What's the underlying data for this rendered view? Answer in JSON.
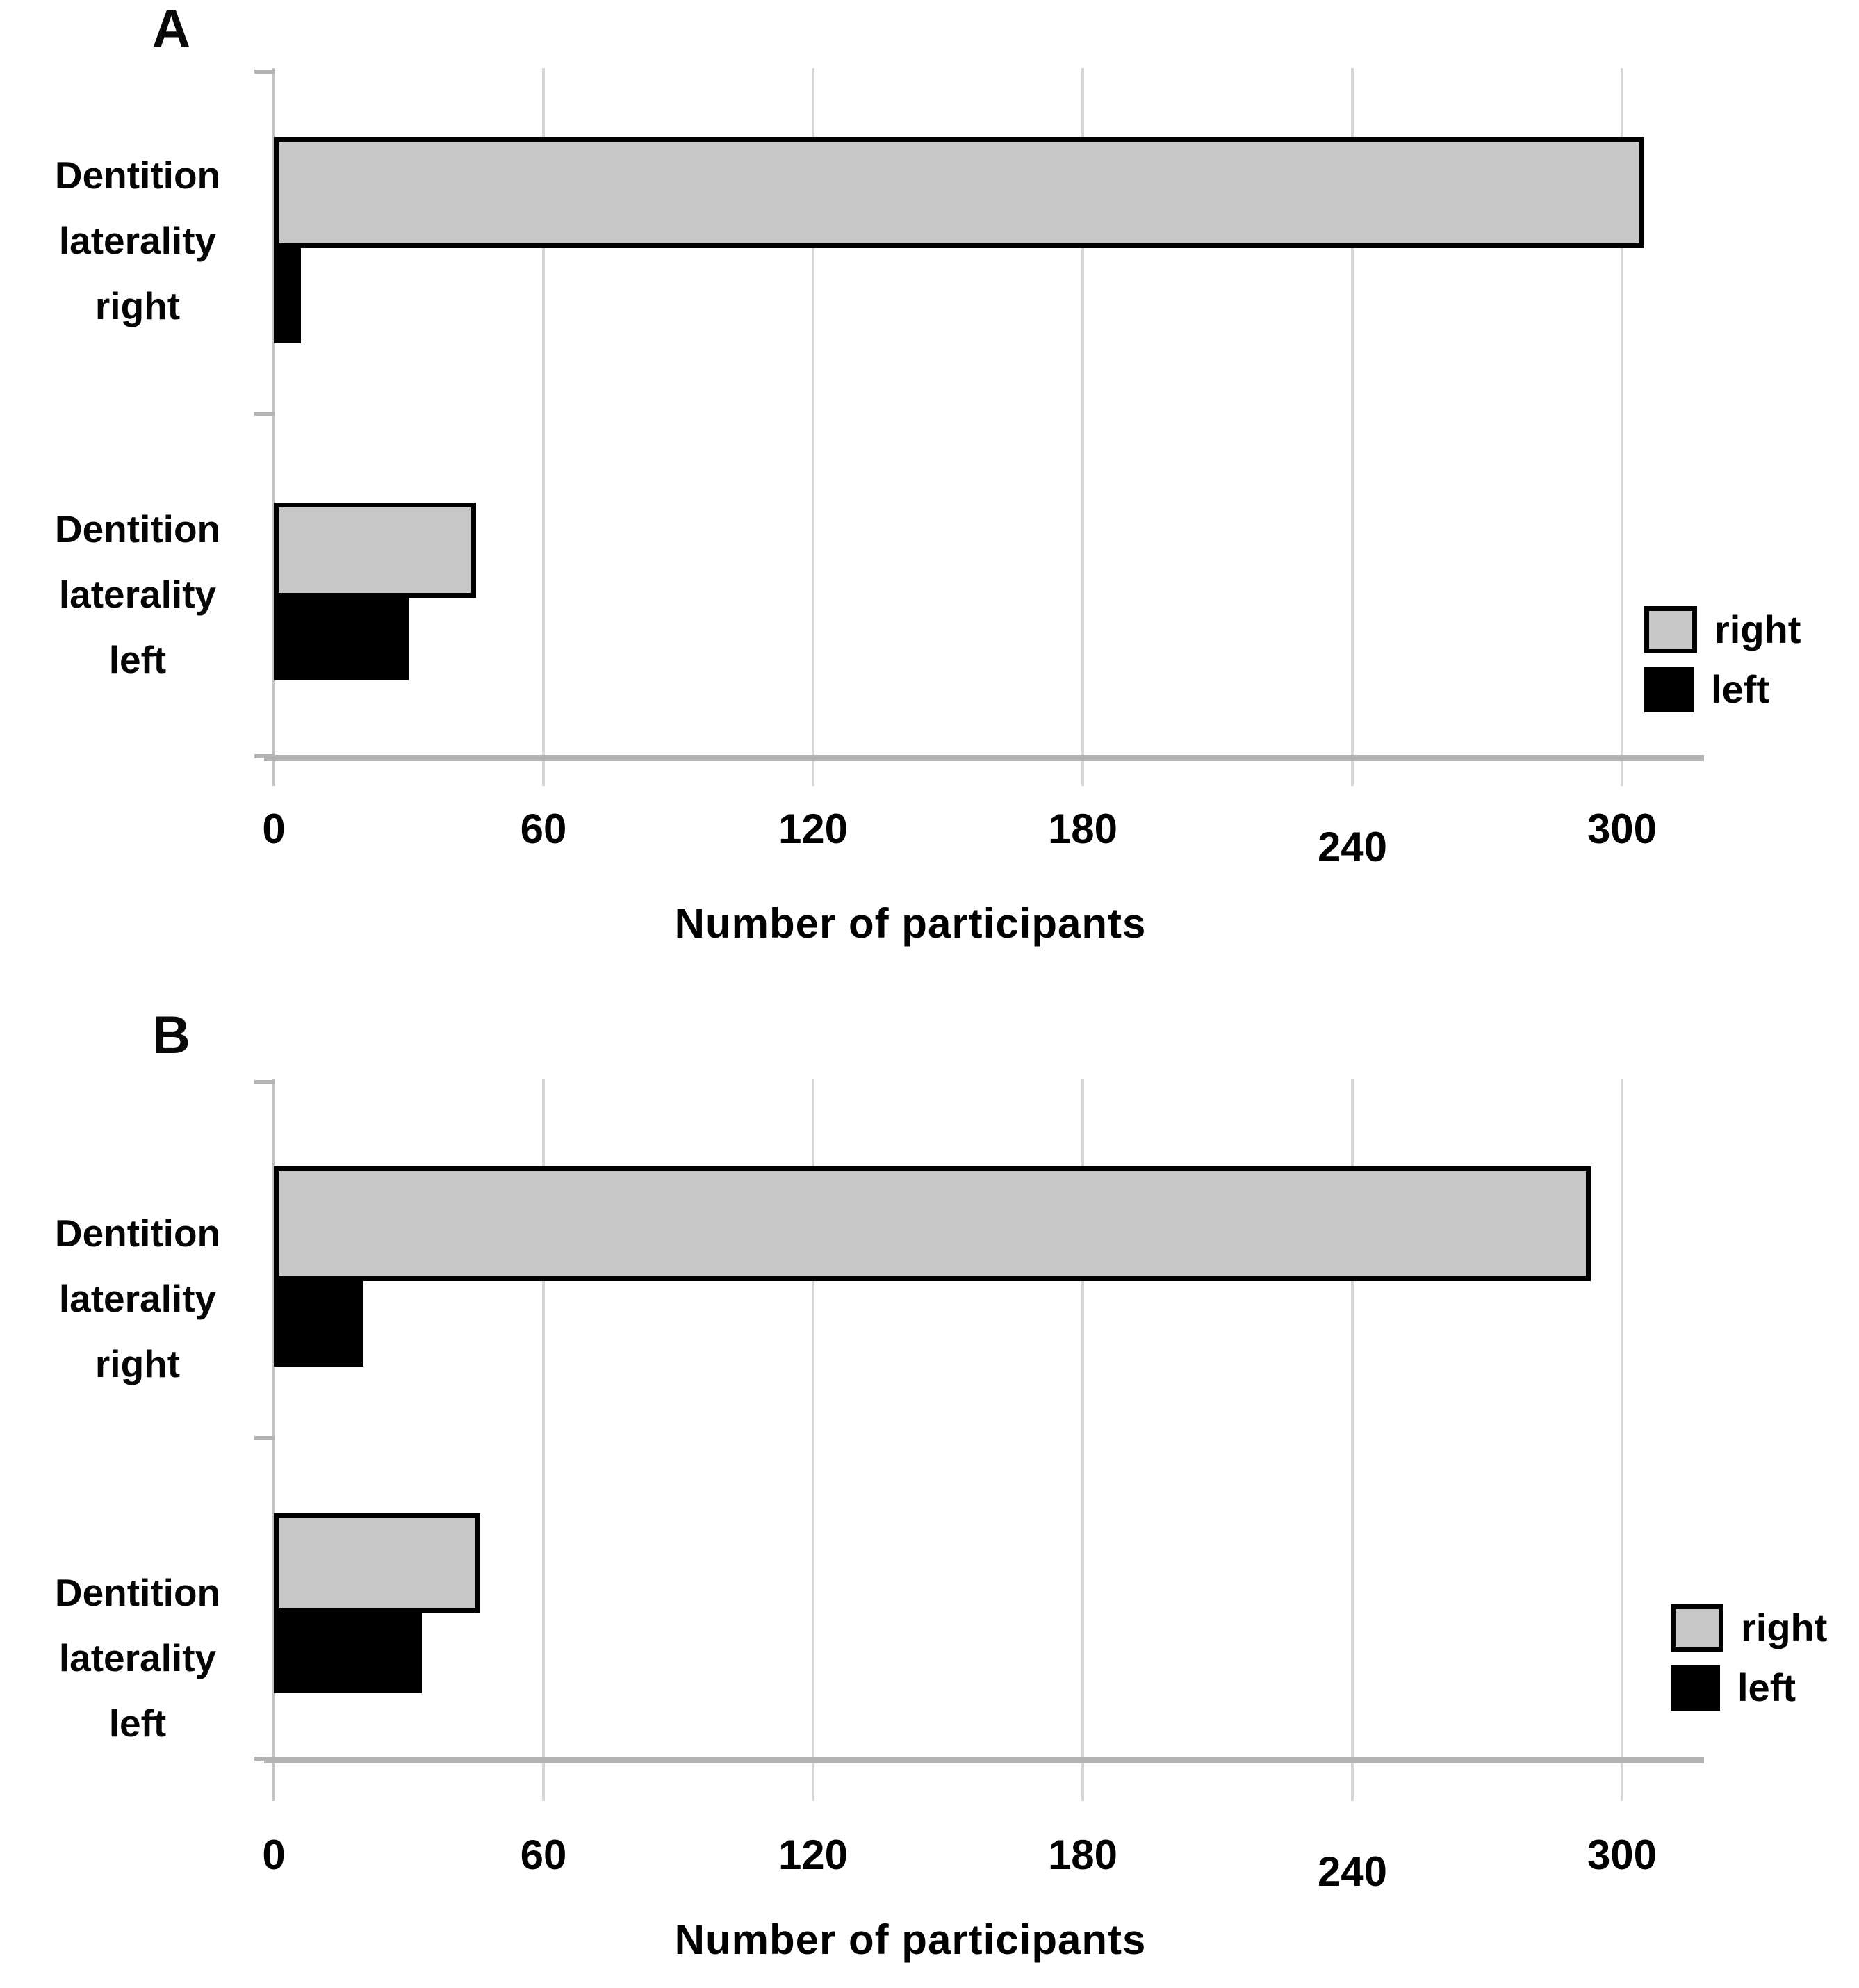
{
  "chart_data": [
    {
      "panel_label": "A",
      "type": "bar",
      "orientation": "horizontal",
      "title": "",
      "xlabel": "Number of participants",
      "ylabel": "",
      "x_ticks": [
        "0",
        "60",
        "120",
        "180",
        "240",
        "300"
      ],
      "xlim": [
        0,
        300
      ],
      "grid": true,
      "legend_position": "right",
      "categories": [
        "Dentition laterality right",
        "Dentition laterality left"
      ],
      "category_lines": [
        [
          "Dentition",
          "laterality",
          "right"
        ],
        [
          "Dentition",
          "laterality",
          "left"
        ]
      ],
      "series": [
        {
          "name": "right",
          "color": "#c7c7c7",
          "values": [
            305,
            45
          ]
        },
        {
          "name": "left",
          "color": "#000000",
          "values": [
            6,
            30
          ]
        }
      ],
      "legend": [
        {
          "label": "right",
          "color": "#c7c7c7"
        },
        {
          "label": "left",
          "color": "#000000"
        }
      ]
    },
    {
      "panel_label": "B",
      "type": "bar",
      "orientation": "horizontal",
      "title": "",
      "xlabel": "Number of participants",
      "ylabel": "",
      "x_ticks": [
        "0",
        "60",
        "120",
        "180",
        "240",
        "300"
      ],
      "xlim": [
        0,
        300
      ],
      "grid": true,
      "legend_position": "right",
      "categories": [
        "Dentition laterality right",
        "Dentition laterality left"
      ],
      "category_lines": [
        [
          "Dentition",
          "laterality",
          "right"
        ],
        [
          "Dentition",
          "laterality",
          "left"
        ]
      ],
      "series": [
        {
          "name": "right",
          "color": "#c7c7c7",
          "values": [
            293,
            46
          ]
        },
        {
          "name": "left",
          "color": "#000000",
          "values": [
            20,
            33
          ]
        }
      ],
      "legend": [
        {
          "label": "right",
          "color": "#c7c7c7"
        },
        {
          "label": "left",
          "color": "#000000"
        }
      ]
    }
  ]
}
